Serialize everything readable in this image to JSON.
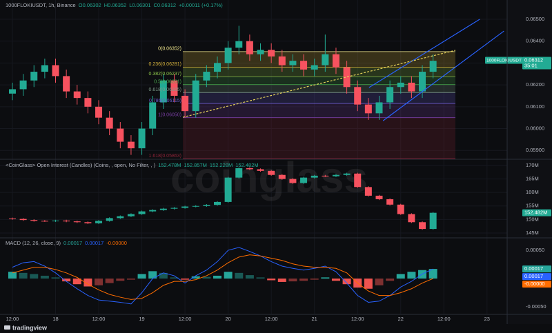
{
  "watermark": "coinglass",
  "logo": "tradingview",
  "chart_data": [
    {
      "type": "candlestick",
      "title": "1000FLOKIUSDT, 1h, Binance",
      "header_values": [
        "O0.06302",
        "H0.06352",
        "L0.06301",
        "C0.06312",
        "+0.00011 (+0.17%)"
      ],
      "x": [
        0,
        3,
        6,
        9,
        12,
        15,
        18,
        21,
        24,
        27,
        30,
        33,
        36,
        39,
        42,
        45,
        48,
        51,
        54,
        57,
        60,
        63,
        66,
        69,
        72,
        75,
        78,
        81,
        84,
        87,
        90,
        93,
        96,
        99,
        102,
        105,
        108,
        111,
        114,
        117
      ],
      "open": [
        0.0616,
        0.0618,
        0.0622,
        0.0626,
        0.0629,
        0.0624,
        0.0617,
        0.0614,
        0.061,
        0.0605,
        0.06,
        0.0594,
        0.0591,
        0.06,
        0.0612,
        0.0622,
        0.0615,
        0.0608,
        0.0622,
        0.0626,
        0.063,
        0.0637,
        0.064,
        0.0634,
        0.0636,
        0.0633,
        0.0629,
        0.0631,
        0.0627,
        0.0629,
        0.0634,
        0.0628,
        0.0619,
        0.0611,
        0.0607,
        0.0612,
        0.0619,
        0.0621,
        0.0617,
        0.0626
      ],
      "high": [
        0.0621,
        0.0625,
        0.0629,
        0.0632,
        0.0632,
        0.0627,
        0.062,
        0.0617,
        0.0613,
        0.0608,
        0.0603,
        0.0597,
        0.0603,
        0.0615,
        0.0625,
        0.0625,
        0.0618,
        0.0625,
        0.0629,
        0.0633,
        0.064,
        0.0647,
        0.0643,
        0.0639,
        0.0639,
        0.0636,
        0.0634,
        0.0634,
        0.0632,
        0.0643,
        0.0637,
        0.0631,
        0.0622,
        0.0614,
        0.0615,
        0.0622,
        0.0624,
        0.0624,
        0.0629,
        0.0634
      ],
      "low": [
        0.0613,
        0.0615,
        0.0619,
        0.0623,
        0.0621,
        0.0614,
        0.0611,
        0.0607,
        0.0602,
        0.0597,
        0.0591,
        0.0588,
        0.0588,
        0.0597,
        0.0609,
        0.0612,
        0.0605,
        0.0605,
        0.0619,
        0.0623,
        0.0627,
        0.0634,
        0.0631,
        0.0631,
        0.063,
        0.0626,
        0.0626,
        0.0624,
        0.0624,
        0.0626,
        0.0625,
        0.0616,
        0.0608,
        0.0604,
        0.0604,
        0.0609,
        0.0616,
        0.0614,
        0.0614,
        0.0623
      ],
      "close": [
        0.0618,
        0.0622,
        0.0626,
        0.0629,
        0.0624,
        0.0617,
        0.0614,
        0.061,
        0.0605,
        0.06,
        0.0594,
        0.0591,
        0.06,
        0.0612,
        0.0622,
        0.0615,
        0.0608,
        0.0622,
        0.0626,
        0.063,
        0.0637,
        0.064,
        0.0634,
        0.0636,
        0.0633,
        0.0629,
        0.0631,
        0.0627,
        0.0629,
        0.0634,
        0.0628,
        0.0619,
        0.0611,
        0.0607,
        0.0612,
        0.0619,
        0.0621,
        0.0617,
        0.0626,
        0.0631
      ],
      "up_color": "#22ab94",
      "down_color": "#f7525f",
      "ylim": [
        0.05863,
        0.06588
      ],
      "yticks": [
        {
          "value": 0.065,
          "label": "0.06500"
        },
        {
          "value": 0.064,
          "label": "0.06400"
        },
        {
          "value": 0.063,
          "label": "0.06300"
        },
        {
          "value": 0.062,
          "label": "0.06200"
        },
        {
          "value": 0.061,
          "label": "0.06100"
        },
        {
          "value": 0.06,
          "label": "0.06000"
        },
        {
          "value": 0.059,
          "label": "0.05900"
        }
      ],
      "grid": true,
      "symbol": "1000FLOKIUSDT",
      "last_value": {
        "value": 0.06312,
        "label": "0.06312"
      },
      "countdown": "35:01",
      "last_color": "#22ab94",
      "fib_xlim": [
        47.4,
        123.2
      ],
      "fib_levels": [
        {
          "value": 0.06352,
          "label": "0(0.06352)",
          "color": "#f0e68c"
        },
        {
          "value": 0.06281,
          "label": "0.236(0.06281)",
          "color": "#d4b13a"
        },
        {
          "value": 0.06237,
          "label": "0.382(0.06237)",
          "color": "#8bc34a"
        },
        {
          "value": 0.06201,
          "label": "0.5(0.06201)",
          "color": "#4caf50"
        },
        {
          "value": 0.06165,
          "label": "0.618(0.06165)",
          "color": "#7d9b8a"
        },
        {
          "value": 0.06115,
          "label": "0.786(0.06115)",
          "color": "#6a5acd"
        },
        {
          "value": 0.0605,
          "label": "1(0.06050)",
          "color": "#7b3fa6"
        },
        {
          "value": 0.05863,
          "label": "1.618(0.05863)",
          "color": "#8e2438"
        }
      ],
      "trendlines": [
        {
          "x": [
            99.2,
            130.0
          ],
          "y": [
            0.06188,
            0.065
          ],
          "color": "#2962ff",
          "dash": false
        },
        {
          "x": [
            103.1,
            136.7
          ],
          "y": [
            0.06036,
            0.06446
          ],
          "color": "#2962ff",
          "dash": false
        },
        {
          "x": [
            47.4,
            123.2
          ],
          "y": [
            0.06052,
            0.06358
          ],
          "color": "#e6d35a",
          "dash": true
        }
      ]
    },
    {
      "type": "candlestick",
      "title": "<CoinGlass> Open Interest (Candles) (Coins, , open, No Filter, , )",
      "header_values": [
        "152.478M",
        "152.857M",
        "152.228M",
        "152.482M"
      ],
      "x": [
        0,
        3,
        6,
        9,
        12,
        15,
        18,
        21,
        24,
        27,
        30,
        33,
        36,
        39,
        42,
        45,
        48,
        51,
        54,
        57,
        60,
        63,
        66,
        69,
        72,
        75,
        78,
        81,
        84,
        87,
        90,
        93,
        96,
        99,
        102,
        105,
        108,
        111,
        114,
        117
      ],
      "open": [
        150.4,
        150.2,
        149.8,
        149.5,
        149.4,
        149.6,
        149.3,
        149.0,
        148.6,
        149.5,
        150.5,
        151.2,
        152.0,
        153.0,
        153.5,
        154.0,
        154.3,
        154.8,
        155.0,
        155.4,
        156.5,
        165.5,
        169.0,
        168.6,
        168.0,
        166.5,
        165.0,
        163.5,
        165.5,
        166.2,
        166.0,
        166.5,
        167.0,
        162.0,
        158.8,
        157.5,
        155.5,
        152.0,
        149.0,
        146.5
      ],
      "high": [
        150.7,
        150.5,
        150.1,
        149.8,
        149.9,
        149.9,
        149.6,
        149.3,
        149.8,
        150.8,
        151.5,
        152.3,
        153.3,
        153.8,
        154.3,
        154.6,
        155.1,
        155.3,
        155.7,
        156.8,
        165.8,
        169.3,
        169.3,
        168.9,
        168.3,
        166.8,
        165.3,
        165.8,
        166.5,
        166.5,
        166.8,
        167.3,
        167.3,
        162.3,
        159.1,
        157.8,
        155.8,
        152.3,
        149.3,
        152.78
      ],
      "low": [
        149.9,
        149.5,
        149.2,
        149.1,
        149.1,
        149.0,
        148.7,
        148.3,
        148.3,
        149.2,
        150.2,
        150.9,
        151.7,
        152.7,
        153.2,
        153.7,
        154.0,
        154.5,
        154.7,
        155.1,
        156.2,
        165.2,
        168.3,
        167.7,
        166.2,
        164.7,
        163.2,
        163.2,
        165.2,
        165.7,
        165.7,
        166.2,
        161.7,
        158.5,
        157.2,
        155.2,
        151.7,
        148.7,
        146.2,
        146.2
      ],
      "close": [
        150.2,
        149.8,
        149.5,
        149.4,
        149.6,
        149.3,
        149.0,
        148.6,
        149.5,
        150.5,
        151.2,
        152.0,
        153.0,
        153.5,
        154.0,
        154.3,
        154.8,
        155.0,
        155.4,
        156.5,
        165.5,
        169.0,
        168.6,
        168.0,
        166.5,
        165.0,
        163.5,
        165.5,
        166.2,
        166.0,
        166.5,
        167.0,
        162.0,
        158.8,
        157.5,
        155.5,
        152.0,
        149.0,
        146.5,
        152.48
      ],
      "up_color": "#22ab94",
      "down_color": "#f7525f",
      "ylim": [
        143.2,
        172.04
      ],
      "yticks": [
        {
          "value": 170,
          "label": "170M"
        },
        {
          "value": 165,
          "label": "165M"
        },
        {
          "value": 160,
          "label": "160M"
        },
        {
          "value": 155,
          "label": "155M"
        },
        {
          "value": 150,
          "label": "150M"
        },
        {
          "value": 145,
          "label": "145M"
        }
      ],
      "grid": true,
      "last_value": {
        "value": 152.482,
        "label": "152.482M"
      },
      "last_color": "#22ab94"
    },
    {
      "type": "macd",
      "title": "MACD (12, 26, close, 9)",
      "header_values": [
        {
          "label": "0.00017",
          "color": "#26a69a"
        },
        {
          "label": "0.00017",
          "color": "#2962ff"
        },
        {
          "label": "-0.00000",
          "color": "#ff6d00"
        }
      ],
      "x": [
        0,
        3,
        6,
        9,
        12,
        15,
        18,
        21,
        24,
        27,
        30,
        33,
        36,
        39,
        42,
        45,
        48,
        51,
        54,
        57,
        60,
        63,
        66,
        69,
        72,
        75,
        78,
        81,
        84,
        87,
        90,
        93,
        96,
        99,
        102,
        105,
        108,
        111,
        114,
        117
      ],
      "series": [
        {
          "name": "Histogram",
          "color": "#26a69a",
          "negative_color": "#ef5350",
          "values": [
            0.00012,
            0.0001,
            8e-05,
            5e-05,
            2e-05,
            -5e-05,
            -0.0001,
            -0.00014,
            -0.00012,
            -8e-05,
            -4e-05,
            -2e-05,
            8e-05,
            0.00013,
            0.0001,
            2e-05,
            -2e-05,
            4e-05,
            3e-05,
            5e-05,
            0.00012,
            0.0001,
            6e-05,
            2e-05,
            -3e-05,
            -6e-05,
            -5e-05,
            -4e-05,
            -2e-05,
            2e-05,
            -4e-05,
            -0.0001,
            -0.00016,
            -0.00018,
            -0.00012,
            -4e-05,
            8e-05,
            0.00012,
            0.00015,
            0.00017
          ]
        },
        {
          "name": "MACD",
          "color": "#2962ff",
          "values": [
            0.0002,
            0.00028,
            0.0003,
            0.00022,
            0.0001,
            -5e-05,
            -0.00018,
            -0.0003,
            -0.00038,
            -0.0004,
            -0.00042,
            -0.00045,
            -0.00025,
            0,
            0.0001,
            5e-05,
            -8e-05,
            5e-05,
            0.00015,
            0.0003,
            0.0005,
            0.00055,
            0.00048,
            0.0004,
            0.0003,
            0.00022,
            0.00018,
            0.00015,
            0.00018,
            0.00022,
            0.00012,
            -8e-05,
            -0.0003,
            -0.00042,
            -0.0004,
            -0.0003,
            -0.00015,
            -5e-05,
            8e-05,
            0.00017
          ]
        },
        {
          "name": "Signal",
          "color": "#ff6d00",
          "values": [
            0.0001,
            0.00015,
            0.0002,
            0.0002,
            0.00016,
            0.0001,
            2e-05,
            -0.0001,
            -0.0002,
            -0.00028,
            -0.00033,
            -0.00037,
            -0.00035,
            -0.00025,
            -0.00012,
            -5e-05,
            -5e-05,
            -2e-05,
            5e-05,
            0.00015,
            0.00028,
            0.00038,
            0.00042,
            0.0004,
            0.00036,
            0.00032,
            0.00026,
            0.00022,
            0.0002,
            0.0002,
            0.00018,
            0.0001,
            -8e-05,
            -0.00022,
            -0.0003,
            -0.0003,
            -0.00025,
            -0.00018,
            -8e-05,
            0
          ]
        }
      ],
      "ylim": [
        -0.000622,
        0.00072
      ],
      "yticks": [
        {
          "value": 0.0005,
          "label": "0.00050"
        },
        {
          "value": -0.0005,
          "label": "-0.00050"
        }
      ],
      "last_values": [
        {
          "value": 0.00017,
          "label": "0.00017"
        },
        {
          "value": 0.00017,
          "label": "0.00017"
        },
        {
          "value": 0,
          "label": "-0.00000"
        }
      ],
      "xlim": [
        -3.45,
        137.6
      ],
      "xticks": [
        {
          "value": 0,
          "label": "12:00"
        },
        {
          "value": 12,
          "label": "18"
        },
        {
          "value": 24,
          "label": "12:00"
        },
        {
          "value": 36,
          "label": "19"
        },
        {
          "value": 48,
          "label": "12:00"
        },
        {
          "value": 60,
          "label": "20"
        },
        {
          "value": 72,
          "label": "12:00"
        },
        {
          "value": 84,
          "label": "21"
        },
        {
          "value": 96,
          "label": "12:00"
        },
        {
          "value": 108,
          "label": "22"
        },
        {
          "value": 120,
          "label": "12:00"
        },
        {
          "value": 132,
          "label": "23"
        }
      ]
    }
  ]
}
